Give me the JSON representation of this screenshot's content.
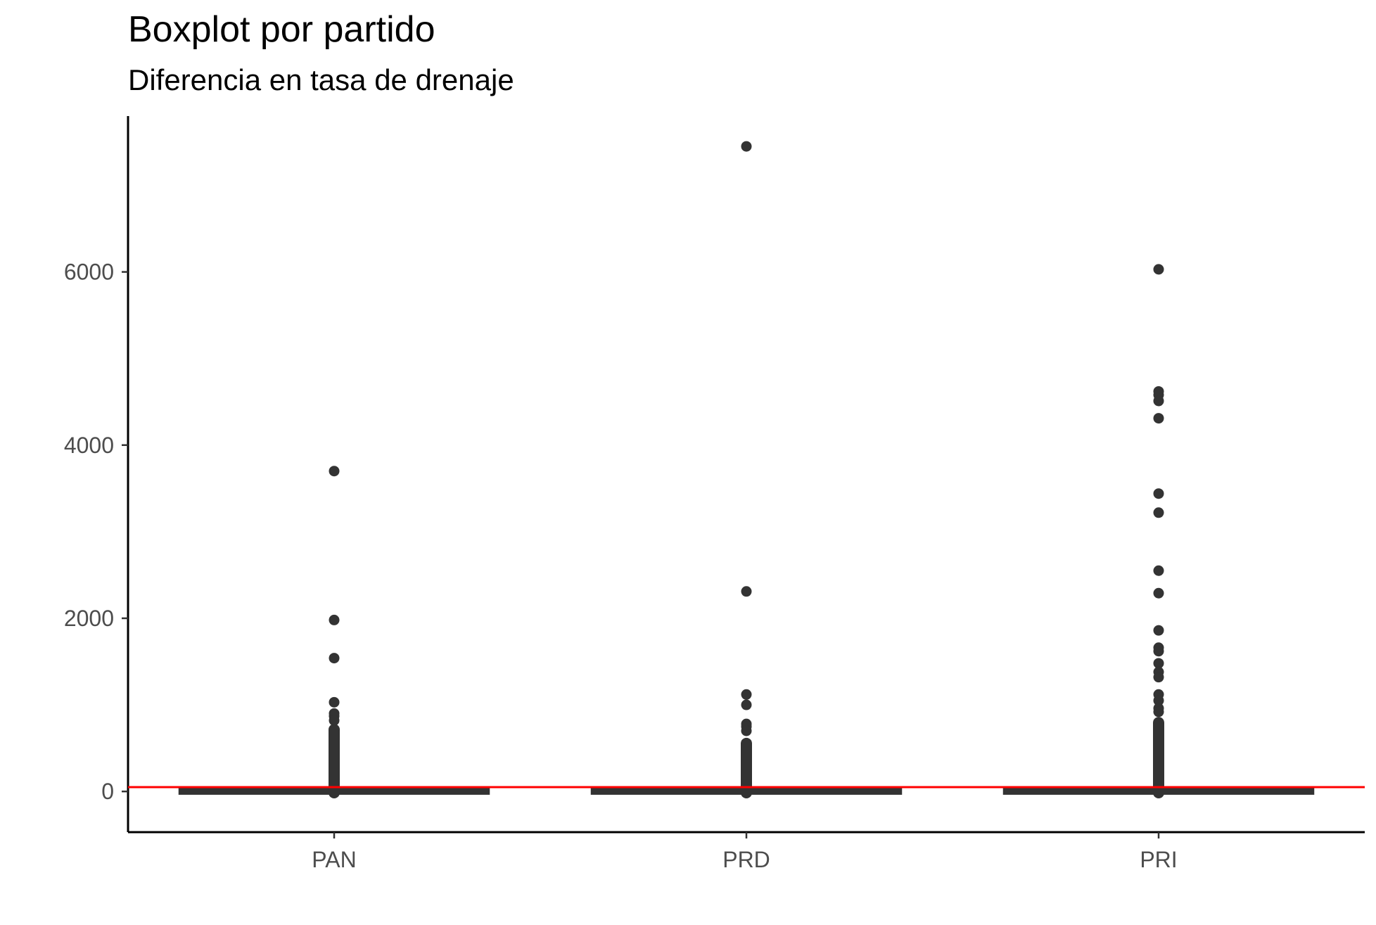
{
  "chart_data": {
    "type": "boxplot",
    "title": "Boxplot por partido",
    "subtitle": "Diferencia en tasa de drenaje",
    "xlabel": "",
    "ylabel": "",
    "categories": [
      "PAN",
      "PRD",
      "PRI"
    ],
    "ylim": [
      -470,
      7800
    ],
    "y_ticks": [
      0,
      2000,
      4000,
      6000
    ],
    "grid": false,
    "reference_line": {
      "y": 50,
      "color": "#ff0000"
    },
    "boxes": [
      {
        "category": "PAN",
        "min": -50,
        "q1": -10,
        "median": 0,
        "q3": 10,
        "max": 50,
        "outliers_range": [
          -80,
          780
        ],
        "outliers": [
          3700,
          1980,
          1540,
          1030,
          900,
          870,
          820
        ]
      },
      {
        "category": "PRD",
        "min": -50,
        "q1": -10,
        "median": 0,
        "q3": 10,
        "max": 50,
        "outliers_range": [
          -80,
          620
        ],
        "outliers": [
          7450,
          2310,
          1120,
          1000,
          780,
          750,
          700
        ]
      },
      {
        "category": "PRI",
        "min": -50,
        "q1": -10,
        "median": 0,
        "q3": 10,
        "max": 50,
        "outliers_range": [
          -80,
          860
        ],
        "outliers": [
          6030,
          4620,
          4580,
          4510,
          4310,
          3440,
          3220,
          2550,
          2290,
          1860,
          1660,
          1620,
          1480,
          1380,
          1320,
          1120,
          1050,
          960,
          920
        ]
      }
    ],
    "colors": {
      "points": "#333333",
      "box": "#333333",
      "reference_line": "#ff0000",
      "axis": "#000000"
    }
  }
}
